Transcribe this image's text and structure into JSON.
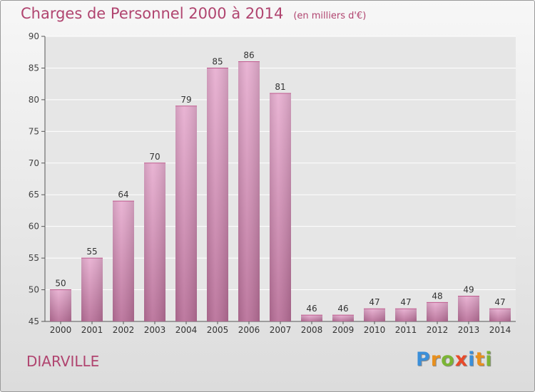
{
  "chart_data": {
    "type": "bar",
    "title": "Charges de Personnel 2000 à 2014",
    "subtitle": "(en milliers d'€)",
    "categories": [
      "2000",
      "2001",
      "2002",
      "2003",
      "2004",
      "2005",
      "2006",
      "2007",
      "2008",
      "2009",
      "2010",
      "2011",
      "2012",
      "2013",
      "2014"
    ],
    "values": [
      50,
      55,
      64,
      70,
      79,
      85,
      86,
      81,
      46,
      46,
      47,
      47,
      48,
      49,
      47
    ],
    "ylim": [
      45,
      90
    ],
    "yticks": [
      45,
      50,
      55,
      60,
      65,
      70,
      75,
      80,
      85,
      90
    ],
    "grid": true,
    "bar_color": "#d98fb5",
    "title_color": "#b0446f"
  },
  "footer": {
    "city": "DIARVILLE",
    "logo_text": "Proxiti",
    "logo_colors": [
      "#3b8fd9",
      "#e8901e",
      "#7bb534",
      "#e84a2a",
      "#3b8fd9",
      "#e8901e",
      "#7bb534"
    ]
  }
}
